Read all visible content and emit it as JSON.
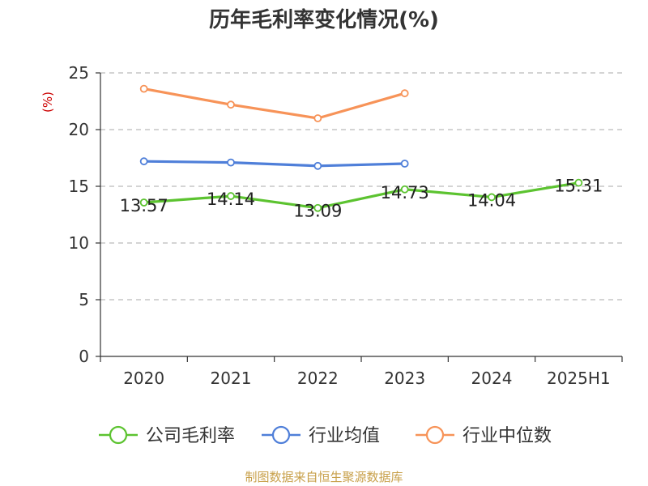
{
  "chart_data": {
    "type": "line",
    "title": "历年毛利率变化情况(%)",
    "ylabel": "(%)",
    "xlabel": "",
    "categories": [
      "2020",
      "2021",
      "2022",
      "2023",
      "2024",
      "2025H1"
    ],
    "ylim": [
      0,
      25
    ],
    "yticks": [
      0,
      5,
      10,
      15,
      20,
      25
    ],
    "grid": true,
    "legend_position": "bottom",
    "series": [
      {
        "name": "公司毛利率",
        "color": "#5cc330",
        "values": [
          13.57,
          14.14,
          13.09,
          14.73,
          14.04,
          15.31
        ],
        "labels": [
          "13.57",
          "14.14",
          "13.09",
          "14.73",
          "14.04",
          "15.31"
        ]
      },
      {
        "name": "行业均值",
        "color": "#4f7fd9",
        "values": [
          17.2,
          17.1,
          16.8,
          17.0,
          null,
          null
        ]
      },
      {
        "name": "行业中位数",
        "color": "#f79358",
        "values": [
          23.6,
          22.2,
          21.0,
          23.2,
          null,
          null
        ]
      }
    ]
  },
  "footer": "制图数据来自恒生聚源数据库",
  "colors": {
    "ylabel": "#cc0000",
    "grid": "#bbbbbb",
    "axis": "#333333"
  }
}
